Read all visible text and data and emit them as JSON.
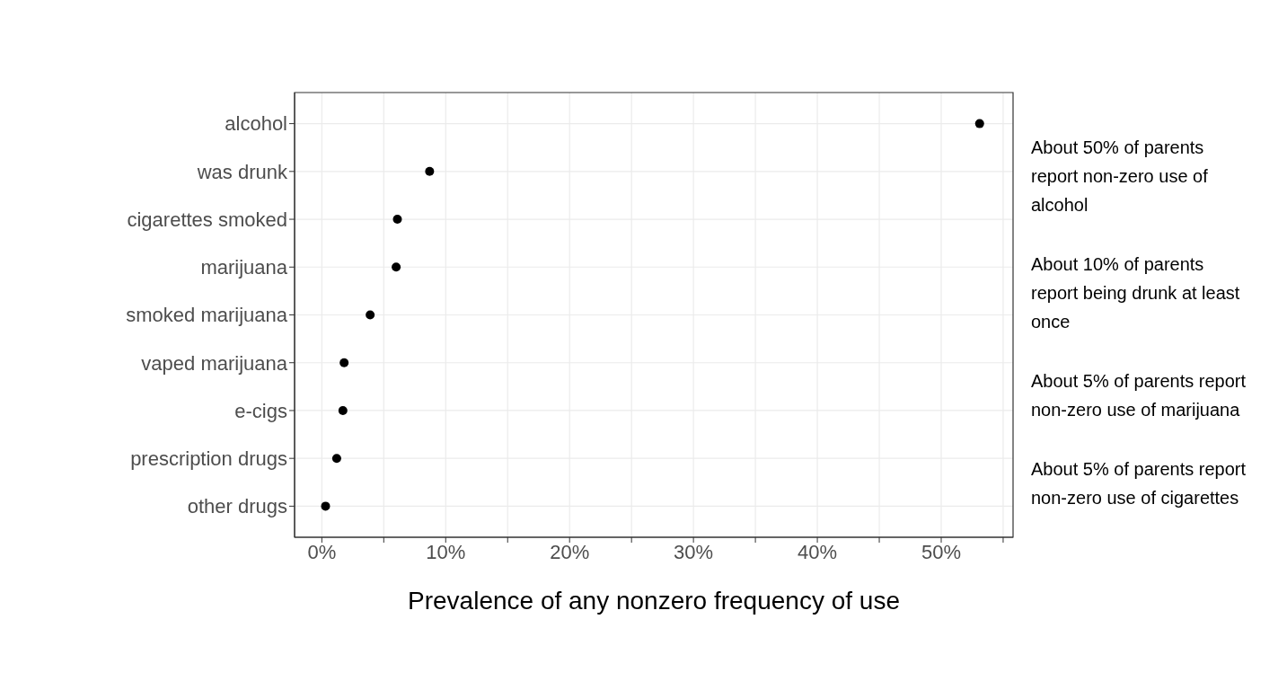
{
  "chart_data": {
    "type": "scatter",
    "orientation": "horizontal",
    "categories": [
      "alcohol",
      "was drunk",
      "cigarettes smoked",
      "marijuana",
      "smoked marijuana",
      "vaped marijuana",
      "e-cigs",
      "prescription drugs",
      "other drugs"
    ],
    "values": [
      53.1,
      8.7,
      6.1,
      6.0,
      3.9,
      1.8,
      1.7,
      1.2,
      0.3
    ],
    "color": "#000000",
    "marker": "circle",
    "xlabel": "Prevalence of any nonzero frequency of use",
    "xlim": [
      -2.2,
      55.8
    ],
    "xticks": [
      {
        "value": 0,
        "label": "0%"
      },
      {
        "value": 5,
        "label": null
      },
      {
        "value": 10,
        "label": "10%"
      },
      {
        "value": 15,
        "label": null
      },
      {
        "value": 20,
        "label": "20%"
      },
      {
        "value": 25,
        "label": null
      },
      {
        "value": 30,
        "label": "30%"
      },
      {
        "value": 35,
        "label": null
      },
      {
        "value": 40,
        "label": "40%"
      },
      {
        "value": 45,
        "label": null
      },
      {
        "value": 50,
        "label": "50%"
      },
      {
        "value": 55,
        "label": null
      }
    ],
    "grid": true,
    "annotations": [
      "About 50% of parents report non-zero use of alcohol",
      "About 10% of parents report being drunk at least once",
      "About 5% of parents report non-zero use of marijuana",
      "About 5% of parents report non-zero use of cigarettes"
    ]
  }
}
